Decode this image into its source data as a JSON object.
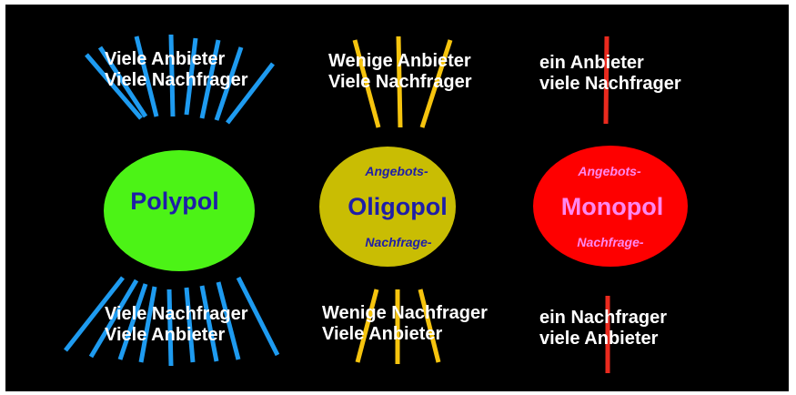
{
  "colors": {
    "background": "#000000",
    "polypol": "#4cf316",
    "oligopol": "#c9bd03",
    "monopol": "#fe0000",
    "polypol_lines": "#1e9bf0",
    "oligopol_lines": "#f6c40e",
    "monopol_lines": "#ea2a1e",
    "dark_text": "#1e1ea8",
    "light_text": "#fd87f0"
  },
  "polypol": {
    "top_line1": "Viele Anbieter",
    "top_line2": "Viele Nachfrager",
    "title": "Polypol",
    "bottom_line1": "Viele Nachfrager",
    "bottom_line2": "Viele Anbieter"
  },
  "oligopol": {
    "top_line1": "Wenige Anbieter",
    "top_line2": "Viele Nachfrager",
    "prefix": "Angebots-",
    "title": "Oligopol",
    "suffix": "Nachfrage-",
    "bottom_line1": "Wenige Nachfrager",
    "bottom_line2": "Viele Anbieter"
  },
  "monopol": {
    "top_line1": "ein Anbieter",
    "top_line2": "viele Nachfrager",
    "prefix": "Angebots-",
    "title": "Monopol",
    "suffix": "Nachfrage-",
    "bottom_line1": "ein Nachfrager",
    "bottom_line2": "viele Anbieter"
  }
}
